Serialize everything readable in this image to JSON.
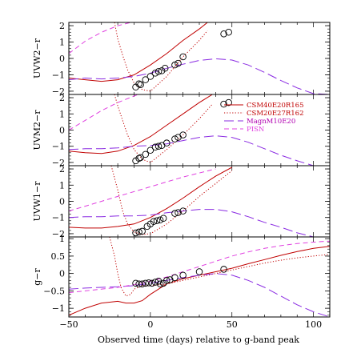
{
  "chart_data": {
    "type": "line",
    "xlabel": "Observed time (days) relative to g-band peak",
    "xlim": [
      -50,
      110
    ],
    "x_ticks": [
      -50,
      0,
      50,
      100
    ],
    "legend_position": "right side of second panel",
    "series_styles": [
      {
        "name": "CSM40E20R165",
        "color": "#c00000",
        "dash": "solid",
        "label_color": "#c00000"
      },
      {
        "name": "CSM20E27R162",
        "color": "#c00000",
        "dash": "dotted",
        "label_color": "#c00000"
      },
      {
        "name": "MagnM10E20",
        "color": "#8a2be2",
        "dash": "long-dash",
        "label_color": "#b000b0"
      },
      {
        "name": "PISN",
        "color": "#e040e0",
        "dash": "short-dash",
        "label_color": "#e040e0"
      }
    ],
    "panels": [
      {
        "ylabel": "UVW2−r",
        "ylim": [
          -2.2,
          2.2
        ],
        "y_ticks": [
          -2,
          -1,
          0,
          1,
          2
        ],
        "observations": [
          [
            -9,
            -1.75
          ],
          [
            -7,
            -1.55
          ],
          [
            -6,
            -1.6
          ],
          [
            -3,
            -1.3
          ],
          [
            0,
            -1.1
          ],
          [
            3,
            -0.9
          ],
          [
            5,
            -0.8
          ],
          [
            7,
            -0.75
          ],
          [
            9,
            -0.6
          ],
          [
            15,
            -0.4
          ],
          [
            17,
            -0.3
          ],
          [
            20,
            0.1
          ],
          [
            45,
            1.5
          ],
          [
            48,
            1.6
          ]
        ],
        "series": [
          {
            "name": "CSM40E20R165",
            "x": [
              -50,
              -40,
              -30,
              -20,
              -10,
              0,
              10,
              20,
              30,
              35
            ],
            "y": [
              -1.2,
              -1.3,
              -1.4,
              -1.3,
              -1.0,
              -0.4,
              0.3,
              1.1,
              1.8,
              2.2
            ]
          },
          {
            "name": "CSM20E27R162",
            "x": [
              -22,
              -20,
              -17,
              -14,
              -10,
              -5,
              0,
              10,
              20,
              30,
              35
            ],
            "y": [
              2.2,
              1.2,
              0.2,
              -0.7,
              -1.5,
              -1.9,
              -2.0,
              -1.1,
              0.1,
              1.1,
              1.7
            ]
          },
          {
            "name": "MagnM10E20",
            "x": [
              -50,
              -40,
              -30,
              -20,
              -10,
              0,
              10,
              20,
              30,
              40,
              50,
              60,
              70,
              80,
              90,
              100,
              110
            ],
            "y": [
              -1.3,
              -1.2,
              -1.25,
              -1.2,
              -1.1,
              -0.9,
              -0.6,
              -0.35,
              -0.12,
              -0.02,
              -0.1,
              -0.4,
              -0.85,
              -1.35,
              -1.8,
              -2.15,
              -2.2
            ]
          },
          {
            "name": "PISN",
            "x": [
              -50,
              -40,
              -30,
              -20,
              -10,
              -5
            ],
            "y": [
              0.3,
              1.05,
              1.6,
              2.0,
              2.25,
              2.35
            ]
          }
        ]
      },
      {
        "ylabel": "UVM2−r",
        "ylim": [
          -2.2,
          2.2
        ],
        "y_ticks": [
          -2,
          -1,
          0,
          1,
          2
        ],
        "observations": [
          [
            -9,
            -1.9
          ],
          [
            -7,
            -1.75
          ],
          [
            -6,
            -1.7
          ],
          [
            -3,
            -1.5
          ],
          [
            0,
            -1.25
          ],
          [
            3,
            -1.05
          ],
          [
            5,
            -1.0
          ],
          [
            7,
            -0.95
          ],
          [
            10,
            -0.8
          ],
          [
            15,
            -0.55
          ],
          [
            17,
            -0.45
          ],
          [
            20,
            -0.3
          ],
          [
            45,
            1.6
          ],
          [
            48,
            1.7
          ]
        ],
        "series": [
          {
            "name": "CSM40E20R165",
            "x": [
              -50,
              -40,
              -30,
              -20,
              -10,
              0,
              10,
              20,
              30,
              38
            ],
            "y": [
              -1.3,
              -1.4,
              -1.45,
              -1.3,
              -0.95,
              -0.4,
              0.3,
              1.0,
              1.7,
              2.2
            ]
          },
          {
            "name": "CSM20E27R162",
            "x": [
              -22,
              -20,
              -17,
              -14,
              -10,
              -5,
              0,
              10,
              20,
              30,
              38
            ],
            "y": [
              2.2,
              1.5,
              0.6,
              -0.3,
              -1.2,
              -1.8,
              -2.0,
              -1.2,
              -0.3,
              0.7,
              1.6
            ]
          },
          {
            "name": "MagnM10E20",
            "x": [
              -50,
              -40,
              -30,
              -20,
              -10,
              0,
              10,
              20,
              30,
              40,
              50,
              60,
              70,
              80,
              90,
              100,
              110
            ],
            "y": [
              -1.2,
              -1.15,
              -1.15,
              -1.1,
              -1.0,
              -0.95,
              -0.85,
              -0.65,
              -0.45,
              -0.35,
              -0.45,
              -0.75,
              -1.15,
              -1.55,
              -1.9,
              -2.2,
              -2.3
            ]
          },
          {
            "name": "PISN",
            "x": [
              -50,
              -40,
              -30,
              -20,
              -10,
              -5
            ],
            "y": [
              0.0,
              0.6,
              1.2,
              1.7,
              2.1,
              2.3
            ]
          }
        ]
      },
      {
        "ylabel": "UVW1−r",
        "ylim": [
          -2.2,
          2.2
        ],
        "y_ticks": [
          -2,
          -1,
          0,
          1,
          2
        ],
        "observations": [
          [
            -9,
            -1.95
          ],
          [
            -7,
            -1.9
          ],
          [
            -5,
            -1.85
          ],
          [
            -2,
            -1.55
          ],
          [
            0,
            -1.4
          ],
          [
            2,
            -1.25
          ],
          [
            4,
            -1.2
          ],
          [
            6,
            -1.15
          ],
          [
            8,
            -1.05
          ],
          [
            15,
            -0.75
          ],
          [
            17,
            -0.7
          ],
          [
            20,
            -0.6
          ]
        ],
        "series": [
          {
            "name": "CSM40E20R165",
            "x": [
              -50,
              -40,
              -30,
              -20,
              -10,
              0,
              10,
              20,
              30,
              40,
              50
            ],
            "y": [
              -1.6,
              -1.65,
              -1.65,
              -1.55,
              -1.4,
              -1.0,
              -0.45,
              0.2,
              0.9,
              1.55,
              2.1
            ]
          },
          {
            "name": "CSM20E27R162",
            "x": [
              -24,
              -20,
              -17,
              -14,
              -10,
              -5,
              0,
              10,
              20,
              30,
              40,
              50
            ],
            "y": [
              2.2,
              0.7,
              -0.6,
              -1.4,
              -1.9,
              -2.05,
              -2.0,
              -1.4,
              -0.6,
              0.3,
              1.1,
              1.9
            ]
          },
          {
            "name": "MagnM10E20",
            "x": [
              -50,
              -40,
              -30,
              -20,
              -10,
              0,
              10,
              20,
              30,
              40,
              50,
              60,
              70,
              80,
              90,
              100,
              110
            ],
            "y": [
              -1.0,
              -0.95,
              -0.95,
              -0.9,
              -0.9,
              -0.85,
              -0.7,
              -0.6,
              -0.5,
              -0.5,
              -0.65,
              -0.95,
              -1.3,
              -1.6,
              -1.95,
              -2.2,
              -2.3
            ]
          },
          {
            "name": "PISN",
            "x": [
              -50,
              -40,
              -30,
              -20,
              -10,
              0,
              10,
              20,
              30,
              40
            ],
            "y": [
              -0.6,
              -0.3,
              0.0,
              0.3,
              0.6,
              0.9,
              1.2,
              1.5,
              1.75,
              2.0
            ]
          }
        ]
      },
      {
        "ylabel": "g−r",
        "ylim": [
          -1.25,
          1.05
        ],
        "y_ticks": [
          -1,
          -0.5,
          0,
          0.5,
          1
        ],
        "observations": [
          [
            -9,
            -0.28
          ],
          [
            -7,
            -0.3
          ],
          [
            -5,
            -0.3
          ],
          [
            -3,
            -0.28
          ],
          [
            -1,
            -0.27
          ],
          [
            1,
            -0.28
          ],
          [
            3,
            -0.25
          ],
          [
            5,
            -0.22
          ],
          [
            6,
            -0.3
          ],
          [
            8,
            -0.28
          ],
          [
            10,
            -0.2
          ],
          [
            12,
            -0.18
          ],
          [
            15,
            -0.12
          ],
          [
            20,
            -0.05
          ],
          [
            30,
            0.05
          ],
          [
            45,
            0.12
          ]
        ],
        "series": [
          {
            "name": "CSM40E20R165",
            "x": [
              -50,
              -40,
              -30,
              -20,
              -15,
              -10,
              -5,
              0,
              10,
              20,
              30,
              40,
              50,
              60,
              70,
              80,
              90,
              100,
              110
            ],
            "y": [
              -1.2,
              -1.0,
              -0.85,
              -0.8,
              -0.85,
              -0.85,
              -0.78,
              -0.6,
              -0.3,
              -0.15,
              -0.05,
              0.05,
              0.15,
              0.28,
              0.4,
              0.52,
              0.63,
              0.72,
              0.78
            ]
          },
          {
            "name": "CSM20E27R162",
            "x": [
              -25,
              -22,
              -20,
              -18,
              -15,
              -12,
              -10,
              -5,
              0,
              10,
              20,
              30,
              40,
              50,
              60,
              70,
              80,
              90,
              100,
              110
            ],
            "y": [
              1.05,
              0.5,
              0.0,
              -0.4,
              -0.65,
              -0.6,
              -0.45,
              -0.35,
              -0.35,
              -0.3,
              -0.2,
              -0.1,
              0.0,
              0.1,
              0.2,
              0.3,
              0.38,
              0.45,
              0.5,
              0.55
            ]
          },
          {
            "name": "MagnM10E20",
            "x": [
              -50,
              -40,
              -30,
              -20,
              -10,
              0,
              10,
              20,
              30,
              40,
              50,
              60,
              70,
              80,
              90,
              100,
              110
            ],
            "y": [
              -0.45,
              -0.42,
              -0.4,
              -0.38,
              -0.35,
              -0.28,
              -0.2,
              -0.12,
              -0.05,
              0.0,
              -0.05,
              -0.2,
              -0.4,
              -0.65,
              -0.9,
              -1.1,
              -1.25
            ]
          },
          {
            "name": "PISN",
            "x": [
              -50,
              -40,
              -30,
              -20,
              -10,
              0,
              10,
              20,
              30,
              40,
              50,
              60,
              70,
              80,
              90,
              100,
              110
            ],
            "y": [
              -0.55,
              -0.5,
              -0.45,
              -0.4,
              -0.32,
              -0.22,
              -0.1,
              0.05,
              0.2,
              0.35,
              0.5,
              0.62,
              0.72,
              0.8,
              0.86,
              0.9,
              0.93
            ]
          }
        ]
      }
    ]
  }
}
